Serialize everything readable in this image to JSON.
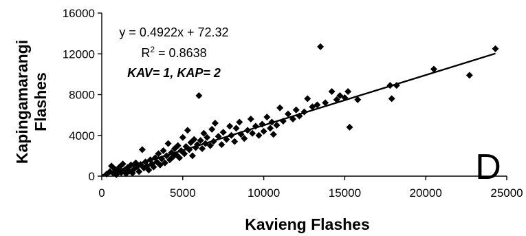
{
  "chart_data": {
    "type": "scatter",
    "title": "",
    "xlabel": "Kavieng Flashes",
    "ylabel_lines": [
      "Kapingamarangi",
      "Flashes"
    ],
    "xlim": [
      0,
      25000
    ],
    "ylim": [
      0,
      16000
    ],
    "x_ticks": [
      "0",
      "5000",
      "10000",
      "15000",
      "20000",
      "25000"
    ],
    "y_ticks": [
      "0",
      "4000",
      "8000",
      "12000",
      "16000"
    ],
    "grid": false,
    "legend": "none",
    "panel_label": "D",
    "annotations": {
      "equation": "y = 0.4922x + 72.32",
      "r2_label": "R",
      "r2_sup": "2",
      "r2_value": " = 0.8638",
      "site_codes": "KAV= 1, KAP= 2"
    },
    "trendline": {
      "slope": 0.4922,
      "intercept": 72.32,
      "x_range": [
        0,
        24300
      ]
    },
    "marker_color": "#000000",
    "series": [
      {
        "points": [
          [
            300,
            200
          ],
          [
            500,
            450
          ],
          [
            600,
            1000
          ],
          [
            700,
            300
          ],
          [
            800,
            700
          ],
          [
            900,
            150
          ],
          [
            1000,
            550
          ],
          [
            1100,
            900
          ],
          [
            1200,
            350
          ],
          [
            1300,
            1200
          ],
          [
            1400,
            600
          ],
          [
            1500,
            250
          ],
          [
            1600,
            850
          ],
          [
            1700,
            500
          ],
          [
            1800,
            1100
          ],
          [
            1900,
            300
          ],
          [
            2000,
            700
          ],
          [
            2100,
            1300
          ],
          [
            2200,
            950
          ],
          [
            2300,
            450
          ],
          [
            2400,
            1150
          ],
          [
            2500,
            2600
          ],
          [
            2600,
            800
          ],
          [
            2700,
            1400
          ],
          [
            2800,
            1000
          ],
          [
            2900,
            600
          ],
          [
            3000,
            1600
          ],
          [
            3100,
            1200
          ],
          [
            3200,
            900
          ],
          [
            3300,
            1800
          ],
          [
            3400,
            1400
          ],
          [
            3500,
            2200
          ],
          [
            3600,
            1100
          ],
          [
            3700,
            1700
          ],
          [
            3800,
            2500
          ],
          [
            3900,
            1300
          ],
          [
            4000,
            2000
          ],
          [
            4100,
            3200
          ],
          [
            4200,
            1600
          ],
          [
            4300,
            2300
          ],
          [
            4400,
            1900
          ],
          [
            4500,
            2700
          ],
          [
            4600,
            2100
          ],
          [
            4700,
            3000
          ],
          [
            4800,
            1800
          ],
          [
            4900,
            2500
          ],
          [
            5000,
            3800
          ],
          [
            5100,
            2200
          ],
          [
            5200,
            2900
          ],
          [
            5300,
            4500
          ],
          [
            5400,
            2600
          ],
          [
            5500,
            3300
          ],
          [
            5600,
            2000
          ],
          [
            5700,
            3600
          ],
          [
            5800,
            2800
          ],
          [
            5900,
            3100
          ],
          [
            6000,
            7900
          ],
          [
            6100,
            3500
          ],
          [
            6200,
            2700
          ],
          [
            6300,
            4200
          ],
          [
            6400,
            3200
          ],
          [
            6500,
            3800
          ],
          [
            6700,
            3000
          ],
          [
            6800,
            4600
          ],
          [
            6900,
            3400
          ],
          [
            7000,
            5200
          ],
          [
            7200,
            3900
          ],
          [
            7400,
            3100
          ],
          [
            7500,
            4300
          ],
          [
            7700,
            3600
          ],
          [
            7900,
            4900
          ],
          [
            8000,
            4000
          ],
          [
            8200,
            3400
          ],
          [
            8300,
            4700
          ],
          [
            8500,
            5300
          ],
          [
            8600,
            4100
          ],
          [
            8800,
            3700
          ],
          [
            9000,
            4500
          ],
          [
            9200,
            5600
          ],
          [
            9300,
            4200
          ],
          [
            9500,
            4900
          ],
          [
            9700,
            4000
          ],
          [
            9900,
            5100
          ],
          [
            10000,
            4400
          ],
          [
            10200,
            5800
          ],
          [
            10400,
            4700
          ],
          [
            10500,
            5300
          ],
          [
            10600,
            4100
          ],
          [
            10800,
            5000
          ],
          [
            11000,
            6700
          ],
          [
            11200,
            5400
          ],
          [
            11500,
            6100
          ],
          [
            11800,
            5600
          ],
          [
            12000,
            6500
          ],
          [
            12200,
            5900
          ],
          [
            12500,
            6300
          ],
          [
            12700,
            7600
          ],
          [
            13000,
            6800
          ],
          [
            13300,
            7000
          ],
          [
            13500,
            12700
          ],
          [
            13800,
            7200
          ],
          [
            14200,
            8300
          ],
          [
            14500,
            7500
          ],
          [
            14700,
            7900
          ],
          [
            15000,
            7700
          ],
          [
            15200,
            8300
          ],
          [
            15300,
            4800
          ],
          [
            15800,
            7500
          ],
          [
            17800,
            8900
          ],
          [
            17900,
            7600
          ],
          [
            18200,
            8900
          ],
          [
            20500,
            10500
          ],
          [
            22700,
            9900
          ],
          [
            24300,
            12500
          ]
        ]
      }
    ]
  }
}
